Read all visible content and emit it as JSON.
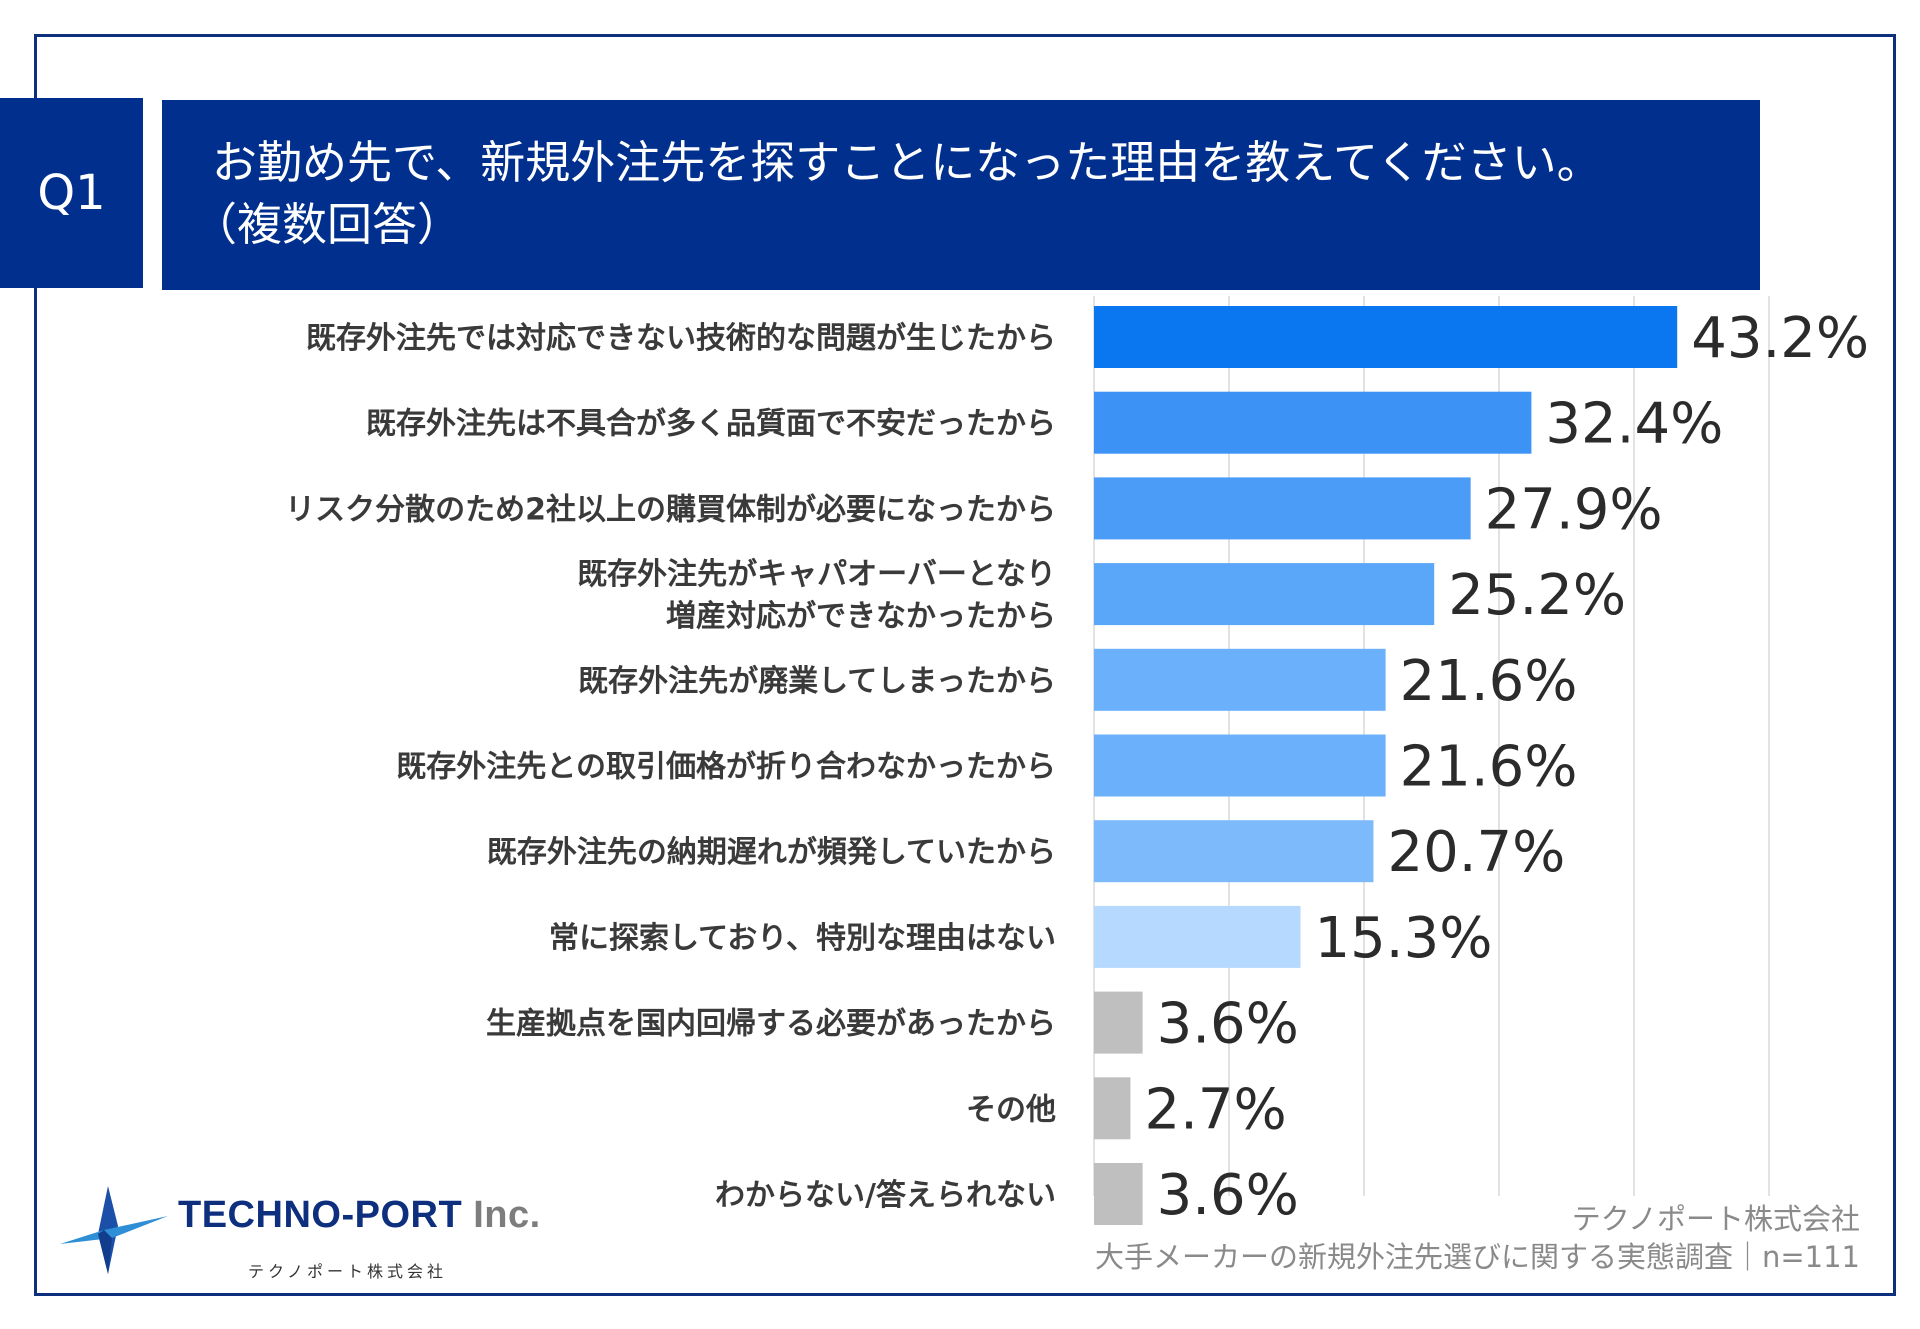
{
  "question": {
    "badge": "Q1",
    "title_line1": "お勤め先で、新規外注先を探すことになった理由を教えてください。",
    "title_line2": "（複数回答）"
  },
  "chart_data": {
    "type": "bar",
    "orientation": "horizontal",
    "title": "お勤め先で、新規外注先を探すことになった理由を教えてください。（複数回答）",
    "categories": [
      [
        "既存外注先では対応できない技術的な問題が生じたから"
      ],
      [
        "既存外注先は不具合が多く品質面で不安だったから"
      ],
      [
        "リスク分散のため2社以上の購買体制が必要になったから"
      ],
      [
        "既存外注先がキャパオーバーとなり",
        "増産対応ができなかったから"
      ],
      [
        "既存外注先が廃業してしまったから"
      ],
      [
        "既存外注先との取引価格が折り合わなかったから"
      ],
      [
        "既存外注先の納期遅れが頻発していたから"
      ],
      [
        "常に探索しており、特別な理由はない"
      ],
      [
        "生産拠点を国内回帰する必要があったから"
      ],
      [
        "その他"
      ],
      [
        "わからない/答えられない"
      ]
    ],
    "values": [
      43.2,
      32.4,
      27.9,
      25.2,
      21.6,
      21.6,
      20.7,
      15.3,
      3.6,
      2.7,
      3.6
    ],
    "value_labels": [
      "43.2%",
      "32.4%",
      "27.9%",
      "25.2%",
      "21.6%",
      "21.6%",
      "20.7%",
      "15.3%",
      "3.6%",
      "2.7%",
      "3.6%"
    ],
    "colors": [
      "#0a77f0",
      "#3d93f5",
      "#4a9cf7",
      "#5aa6f9",
      "#6ab0fa",
      "#6ab0fa",
      "#7dbafb",
      "#b6d9ff",
      "#bfbfbf",
      "#bfbfbf",
      "#bfbfbf"
    ],
    "xlim": [
      0,
      50
    ],
    "grid": true,
    "unit": "%"
  },
  "logo": {
    "name_main": "TECHNO-PORT",
    "name_suffix": "Inc.",
    "name_kana": "テクノポート株式会社"
  },
  "source": {
    "company": "テクノポート株式会社",
    "survey": "大手メーカーの新規外注先選びに関する実態調査｜n=111"
  }
}
